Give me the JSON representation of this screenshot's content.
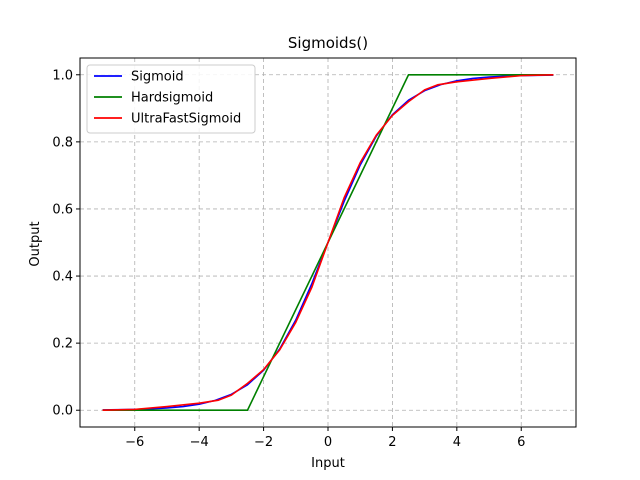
{
  "chart_data": {
    "type": "line",
    "title": "Sigmoids()",
    "xlabel": "Input",
    "ylabel": "Output",
    "xlim": [
      -7.7,
      7.7
    ],
    "ylim": [
      -0.05,
      1.05
    ],
    "xticks": [
      -6,
      -4,
      -2,
      0,
      2,
      4,
      6
    ],
    "xtick_labels": [
      "−6",
      "−4",
      "−2",
      "0",
      "2",
      "4",
      "6"
    ],
    "yticks": [
      0.0,
      0.2,
      0.4,
      0.6,
      0.8,
      1.0
    ],
    "ytick_labels": [
      "0.0",
      "0.2",
      "0.4",
      "0.6",
      "0.8",
      "1.0"
    ],
    "grid": true,
    "grid_style": "dashed",
    "legend_position": "top-left",
    "series": [
      {
        "name": "Sigmoid",
        "color": "#0000ff",
        "x": [
          -7,
          -6.5,
          -6,
          -5.5,
          -5,
          -4.5,
          -4,
          -3.5,
          -3,
          -2.5,
          -2,
          -1.5,
          -1,
          -0.5,
          0,
          0.5,
          1,
          1.5,
          2,
          2.5,
          3,
          3.5,
          4,
          4.5,
          5,
          5.5,
          6,
          6.5,
          7
        ],
        "y": [
          0.0009,
          0.0015,
          0.0025,
          0.0041,
          0.0067,
          0.011,
          0.018,
          0.0293,
          0.0474,
          0.0759,
          0.1192,
          0.1824,
          0.2689,
          0.3775,
          0.5,
          0.6225,
          0.7311,
          0.8176,
          0.8808,
          0.9241,
          0.9526,
          0.9707,
          0.982,
          0.989,
          0.9933,
          0.9959,
          0.9975,
          0.9985,
          0.9991
        ]
      },
      {
        "name": "Hardsigmoid",
        "color": "#008000",
        "x": [
          -7,
          -2.5,
          2.5,
          7
        ],
        "y": [
          0.0,
          0.0,
          1.0,
          1.0
        ]
      },
      {
        "name": "UltraFastSigmoid",
        "color": "#ff0000",
        "x": [
          -7,
          -6,
          -5,
          -4,
          -3.4,
          -3,
          -2.5,
          -2,
          -1.5,
          -1,
          -0.5,
          0,
          0.5,
          1,
          1.5,
          2,
          2.5,
          3,
          3.4,
          4,
          5,
          6,
          7
        ],
        "y": [
          0.0,
          0.0025,
          0.011,
          0.021,
          0.03,
          0.045,
          0.08,
          0.121,
          0.18,
          0.262,
          0.367,
          0.5,
          0.633,
          0.738,
          0.82,
          0.879,
          0.92,
          0.955,
          0.97,
          0.979,
          0.989,
          0.9975,
          1.0
        ]
      }
    ]
  }
}
